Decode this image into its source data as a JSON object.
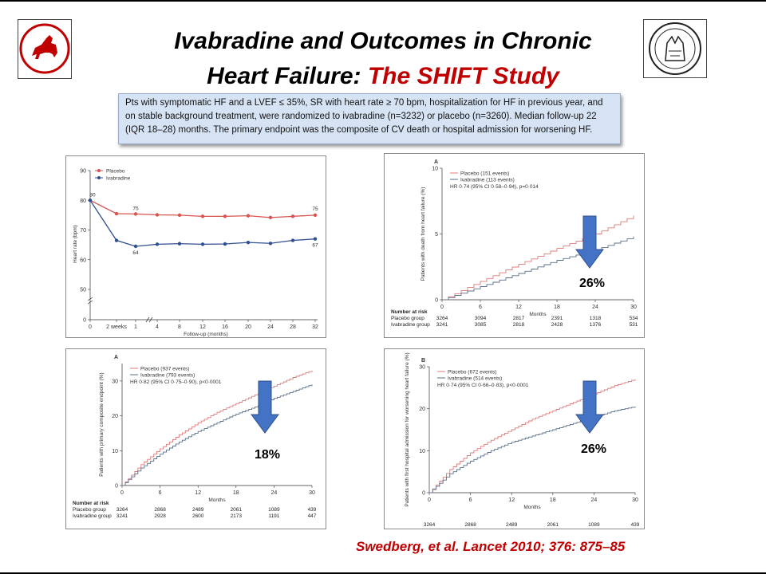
{
  "slide": {
    "title_line1": "Ivabradine and Outcomes in Chronic",
    "title_line2_black": "Heart Failure: ",
    "title_line2_red": "The SHIFT Study",
    "infobox_text": "Pts with symptomatic HF and a LVEF ≤ 35%,  SR with heart rate ≥ 70 bpm, hospitalization for HF in previous year, and on stable background treatment, were randomized to ivabradine (n=3232) or  placebo (n=3260). Median  follow-up 22 (IQR 18–28) months. The primary endpoint was the composite of CV death or hospital admission for worsening HF.",
    "citation": "Swedberg, et al. Lancet 2010; 376: 875–85",
    "colors": {
      "red_title": "#c00000",
      "placebo": "#d9534f",
      "ivabradine": "#2f4f8f",
      "arrow": "#4472c4"
    }
  },
  "chart_data": [
    {
      "type": "line",
      "id": "heart-rate",
      "ylabel": "Heart rate (bpm)",
      "xlabel": "Follow-up (months)",
      "x_ticks": [
        "0",
        "2 weeks",
        "1",
        "4",
        "8",
        "12",
        "16",
        "20",
        "24",
        "28",
        "32"
      ],
      "y_ticks": [
        0,
        50,
        60,
        70,
        80,
        90
      ],
      "series": [
        {
          "name": "Placebo",
          "values": [
            80,
            75.5,
            75.4,
            75.1,
            75.0,
            74.6,
            74.6,
            74.8,
            74.2,
            74.6,
            75.0
          ]
        },
        {
          "name": "Ivabradine",
          "values": [
            80,
            66.5,
            64.5,
            65.2,
            65.4,
            65.2,
            65.3,
            65.8,
            65.5,
            66.5,
            67.0
          ]
        }
      ],
      "annotations": [
        "80",
        "75",
        "64",
        "75",
        "67"
      ]
    },
    {
      "type": "line",
      "id": "death-from-hf",
      "panel_letter": "A",
      "ylabel": "Patients with death from heart failure (%)",
      "xlabel": "Months",
      "x_ticks": [
        0,
        6,
        12,
        18,
        24,
        30
      ],
      "y_ticks": [
        0,
        5,
        10
      ],
      "ylim": [
        0,
        10
      ],
      "legend": [
        "Placebo (151 events)",
        "Ivabradine (113 events)"
      ],
      "stat": "HR 0·74 (95% CI 0·58–0·94), p=0·014",
      "series": [
        {
          "name": "Placebo",
          "x": [
            0,
            6,
            12,
            18,
            24,
            30
          ],
          "y": [
            0,
            1.4,
            2.7,
            3.9,
            5.0,
            6.4
          ]
        },
        {
          "name": "Ivabradine",
          "x": [
            0,
            6,
            12,
            18,
            24,
            30
          ],
          "y": [
            0,
            1.0,
            2.0,
            3.0,
            3.8,
            4.8
          ]
        }
      ],
      "reduction": "26%",
      "risk_header": "Number at risk",
      "risk_rows": [
        {
          "label": "Placebo group",
          "values": [
            "3264",
            "3094",
            "2817",
            "2391",
            "1318",
            "534"
          ]
        },
        {
          "label": "Ivabradine group",
          "values": [
            "3241",
            "3085",
            "2818",
            "2428",
            "1376",
            "531"
          ]
        }
      ]
    },
    {
      "type": "line",
      "id": "primary-composite",
      "panel_letter": "A",
      "ylabel": "Patients with primary composite endpoint (%)",
      "xlabel": "Months",
      "x_ticks": [
        0,
        6,
        12,
        18,
        24,
        30
      ],
      "y_ticks": [
        0,
        10,
        20,
        30
      ],
      "ylim": [
        0,
        35
      ],
      "legend": [
        "Placebo (937 events)",
        "Ivabradine (793 events)"
      ],
      "stat": "HR 0·82 (95% CI 0·75–0·90), p<0·0001",
      "series": [
        {
          "name": "Placebo",
          "x": [
            0,
            3,
            6,
            9,
            12,
            15,
            18,
            21,
            24,
            27,
            30
          ],
          "y": [
            0,
            6,
            10.5,
            14.5,
            18,
            21,
            23.5,
            26,
            28.5,
            31,
            33
          ]
        },
        {
          "name": "Ivabradine",
          "x": [
            0,
            3,
            6,
            9,
            12,
            15,
            18,
            21,
            24,
            27,
            30
          ],
          "y": [
            0,
            5,
            9,
            12.5,
            15.5,
            18,
            20.5,
            22.5,
            25,
            27,
            29
          ]
        }
      ],
      "reduction": "18%",
      "risk_header": "Number at risk",
      "risk_rows": [
        {
          "label": "Placebo group",
          "values": [
            "3264",
            "2868",
            "2489",
            "2061",
            "1089",
            "439"
          ]
        },
        {
          "label": "Ivabradine group",
          "values": [
            "3241",
            "2928",
            "2600",
            "2173",
            "1191",
            "447"
          ]
        }
      ]
    },
    {
      "type": "line",
      "id": "hf-hospitalisation",
      "panel_letter": "B",
      "ylabel": "Patients with first hospital admission for worsening heart failure (%)",
      "xlabel": "Months",
      "x_ticks": [
        0,
        6,
        12,
        18,
        24,
        30
      ],
      "y_ticks": [
        0,
        10,
        20,
        30
      ],
      "ylim": [
        0,
        30
      ],
      "legend": [
        "Placebo (672 events)",
        "Ivabradine (514 events)"
      ],
      "stat": "HR 0·74 (95% CI 0·66–0·83), p<0·0001",
      "series": [
        {
          "name": "Placebo",
          "x": [
            0,
            3,
            6,
            9,
            12,
            15,
            18,
            21,
            24,
            27,
            30
          ],
          "y": [
            0,
            5.5,
            9.5,
            12.5,
            15,
            17.5,
            19.5,
            21.5,
            23.5,
            25.5,
            27
          ]
        },
        {
          "name": "Ivabradine",
          "x": [
            0,
            3,
            6,
            9,
            12,
            15,
            18,
            21,
            24,
            27,
            30
          ],
          "y": [
            0,
            4.5,
            7.5,
            10,
            12,
            13.5,
            15,
            16.5,
            18,
            19.5,
            20.5
          ]
        }
      ],
      "reduction": "26%",
      "risk_rows": [
        {
          "label": "",
          "values": [
            "3264",
            "2868",
            "2489",
            "2061",
            "1089",
            "439"
          ]
        },
        {
          "label": "",
          "values": [
            "3241",
            "2928",
            "2600",
            "2173",
            "1191",
            "447"
          ]
        }
      ]
    }
  ]
}
